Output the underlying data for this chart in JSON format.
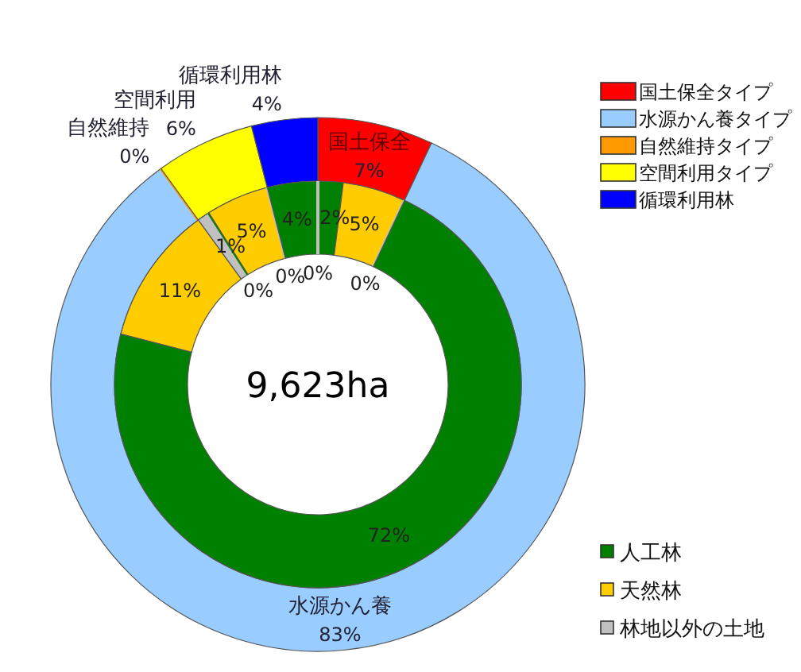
{
  "chart_data": [
    {
      "type": "donut",
      "categories": [
        "国土保全タイプ",
        "水源かん養タイプ",
        "自然維持タイプ",
        "空間利用タイプ",
        "循環利用林"
      ],
      "values": [
        7,
        83,
        0,
        6,
        4
      ],
      "colors": [
        "#ff0000",
        "#99ccff",
        "#ff9900",
        "#ffff00",
        "#0000ff"
      ],
      "value_labels": [
        "7%",
        "83%",
        "0%",
        "6%",
        "4%"
      ],
      "annotations": [
        {
          "text": "国土保全",
          "x": "国土保全タイプ"
        },
        {
          "text": "水源かん養",
          "x": "水源かん養タイプ"
        },
        {
          "text": "自然維持",
          "x": "自然維持タイプ"
        },
        {
          "text": "空間利用",
          "x": "空間利用タイプ"
        },
        {
          "text": "循環利用林",
          "x": "循環利用林"
        }
      ],
      "legend": "top right"
    },
    {
      "type": "donut",
      "categories": [
        "人工林",
        "天然林",
        "林地以外の土地",
        null,
        null,
        null,
        null,
        null,
        null,
        null,
        null,
        null,
        null,
        null,
        null
      ],
      "values": [
        2,
        5,
        0,
        72,
        11,
        1,
        0,
        0,
        0,
        0,
        5,
        0,
        4,
        0,
        0
      ],
      "colors": [
        "#008000",
        "#ffcc00",
        "#c0c0c0",
        "#008000",
        "#ffcc00",
        "#c0c0c0",
        "#008000",
        "#ffcc00",
        "#c0c0c0",
        "#008000",
        "#ffcc00",
        "#c0c0c0",
        "#008000",
        "#ffcc00",
        "#c0c0c0"
      ],
      "value_labels": [
        "2%",
        "5%",
        "0%",
        "72%",
        "11%",
        "1%",
        null,
        null,
        null,
        "0%",
        "5%",
        "0%",
        "4%",
        null,
        "0%"
      ],
      "annotations": [
        "9,623ha"
      ],
      "legend": "bottom right"
    }
  ]
}
